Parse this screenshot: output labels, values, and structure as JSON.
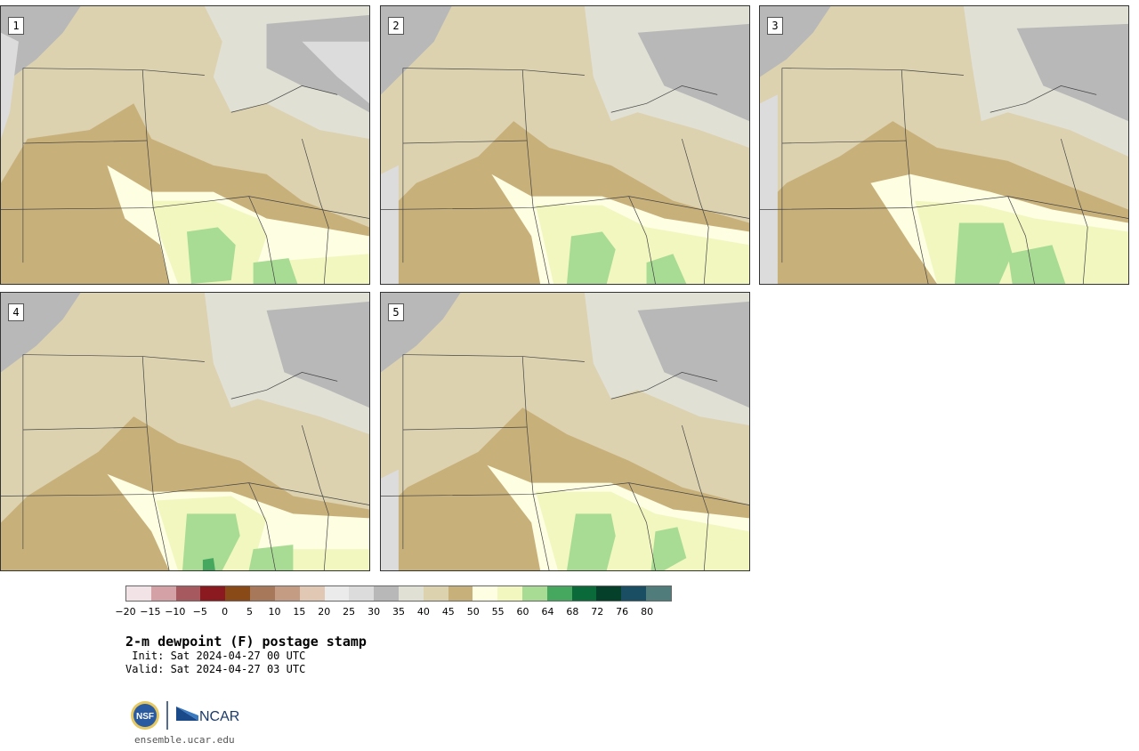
{
  "panels": [
    {
      "label": "1"
    },
    {
      "label": "2"
    },
    {
      "label": "3"
    },
    {
      "label": "4"
    },
    {
      "label": "5"
    }
  ],
  "colorbar": {
    "colors": [
      "#f2e4e6",
      "#d4a2a6",
      "#a65a60",
      "#8a1a20",
      "#8a4a18",
      "#a8785a",
      "#c49c84",
      "#e0c8b4",
      "#ebebeb",
      "#dcdcdc",
      "#b8b8b8",
      "#e0e0d4",
      "#ddd2ae",
      "#c8b07a",
      "#fefee2",
      "#f2f7c0",
      "#a8dc94",
      "#46a85e",
      "#0a6a3a",
      "#04402a",
      "#1a4e62",
      "#507c7c"
    ],
    "tick_labels": [
      "−20",
      "−15",
      "−10",
      "−5",
      "0",
      "5",
      "10",
      "15",
      "20",
      "25",
      "30",
      "35",
      "40",
      "45",
      "50",
      "55",
      "60",
      "64",
      "68",
      "72",
      "76",
      "80"
    ]
  },
  "title": {
    "main": "2-m dewpoint (F) postage stamp",
    "init": " Init: Sat 2024-04-27 00 UTC",
    "valid": "Valid: Sat 2024-04-27 03 UTC"
  },
  "logos": {
    "nsf": "NSF",
    "ncar": "NCAR"
  },
  "site": "ensemble.ucar.edu"
}
